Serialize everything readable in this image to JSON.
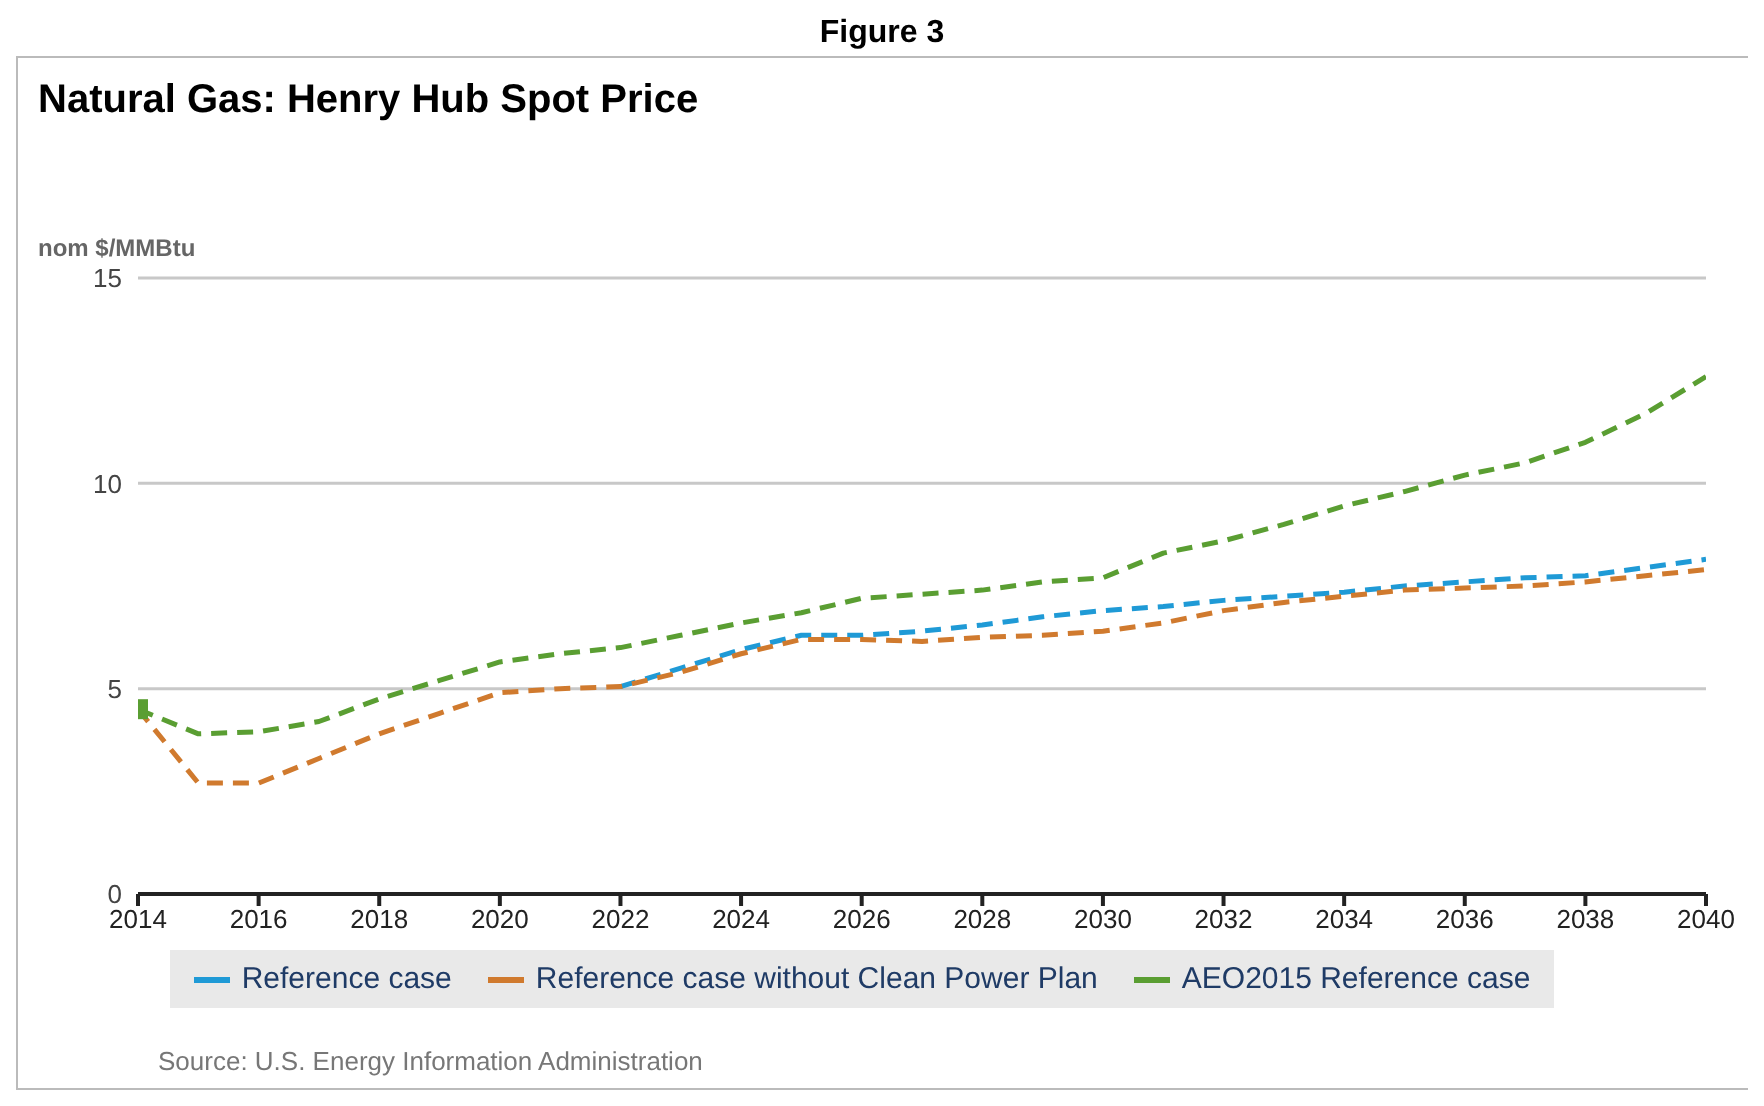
{
  "chart_data": {
    "type": "line",
    "title": "Figure 3",
    "subtitle": "Natural Gas: Henry Hub Spot Price",
    "ylabel": "nom $/MMBtu",
    "annotations": [
      "Source: U.S. Energy Information Administration"
    ],
    "x": [
      2014,
      2015,
      2016,
      2017,
      2018,
      2019,
      2020,
      2021,
      2022,
      2023,
      2024,
      2025,
      2026,
      2027,
      2028,
      2029,
      2030,
      2031,
      2032,
      2033,
      2034,
      2035,
      2036,
      2037,
      2038,
      2039,
      2040
    ],
    "series": [
      {
        "name": "Reference case",
        "color": "#1f9ad6",
        "values": [
          null,
          null,
          null,
          null,
          null,
          null,
          null,
          null,
          5.05,
          5.5,
          5.95,
          6.3,
          6.3,
          6.4,
          6.55,
          6.75,
          6.9,
          7.0,
          7.15,
          7.25,
          7.35,
          7.5,
          7.6,
          7.7,
          7.75,
          7.95,
          8.15
        ]
      },
      {
        "name": "Reference case without Clean Power Plan",
        "color": "#d07a2e",
        "values": [
          4.5,
          2.7,
          2.7,
          3.3,
          3.9,
          4.4,
          4.9,
          5.0,
          5.05,
          5.4,
          5.85,
          6.2,
          6.2,
          6.15,
          6.25,
          6.3,
          6.4,
          6.6,
          6.9,
          7.1,
          7.25,
          7.4,
          7.45,
          7.5,
          7.6,
          7.75,
          7.9
        ]
      },
      {
        "name": "AEO2015 Reference case",
        "color": "#5a9e32",
        "values": [
          4.5,
          3.9,
          3.95,
          4.2,
          4.75,
          5.2,
          5.65,
          5.85,
          6.0,
          6.3,
          6.6,
          6.85,
          7.2,
          7.3,
          7.4,
          7.6,
          7.7,
          8.3,
          8.6,
          9.0,
          9.45,
          9.8,
          10.2,
          10.5,
          11.0,
          11.7,
          12.6
        ]
      },
      {
        "type": "scatter",
        "color": "#5a9e32",
        "marker": "square",
        "x": [
          2014
        ],
        "values": [
          4.5
        ]
      }
    ],
    "line_style": "dashed",
    "marker": "none",
    "xlim": [
      2014,
      2040
    ],
    "xticks": [
      2014,
      2016,
      2018,
      2020,
      2022,
      2024,
      2026,
      2028,
      2030,
      2032,
      2034,
      2036,
      2038,
      2040
    ],
    "ylim": [
      0,
      15
    ],
    "yticks": [
      0,
      5,
      10,
      15
    ],
    "grid": "y",
    "legend": "bottom"
  }
}
